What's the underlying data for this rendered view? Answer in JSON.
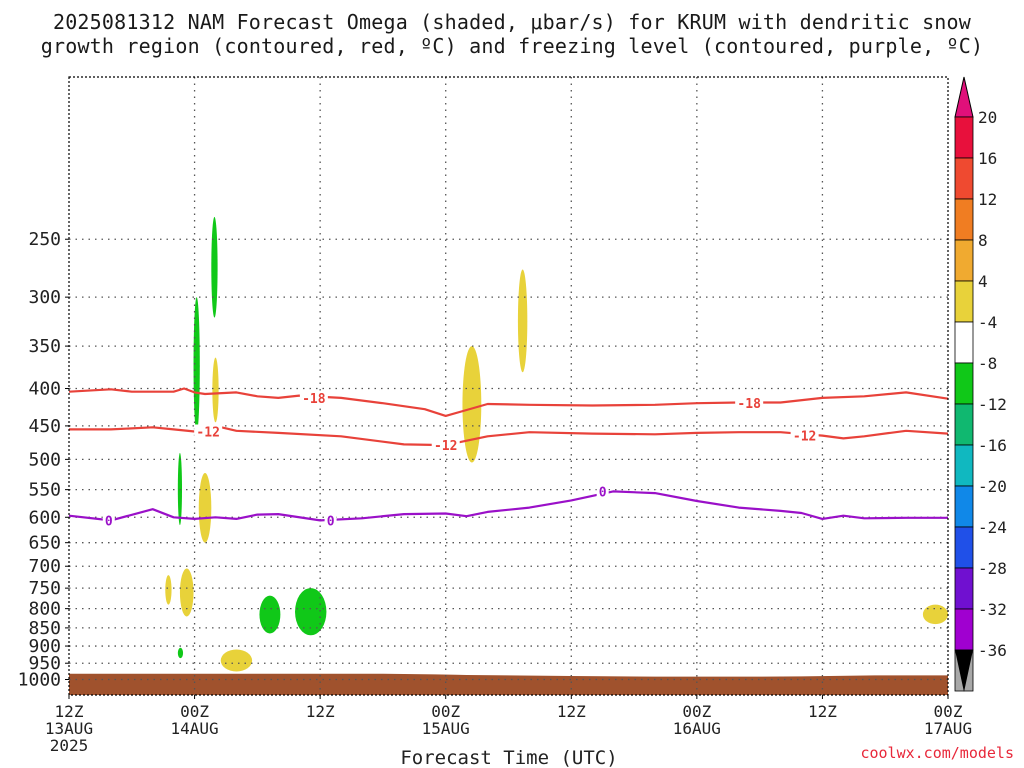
{
  "title_line1": "2025081312 NAM Forecast Omega (shaded, μbar/s) for KRUM with dendritic snow",
  "title_line2": "growth region (contoured, red, ºC) and freezing level (contoured, purple, ºC)",
  "credit": "coolwx.com/models",
  "chart_data": {
    "type": "heatmap",
    "title": "2025081312 NAM Forecast Omega (shaded, μbar/s) for KRUM with dendritic snow growth region (contoured, red, ºC) and freezing level (contoured, purple, ºC)",
    "xlabel": "Forecast Time (UTC)",
    "ylabel": "",
    "x_range_hours": [
      0,
      84
    ],
    "y_axis": "pressure (hPa), inverted",
    "y_ticks": [
      250,
      300,
      350,
      400,
      450,
      500,
      550,
      600,
      650,
      700,
      750,
      800,
      850,
      900,
      950,
      1000
    ],
    "x_ticks": [
      {
        "hour": 0,
        "lines": [
          "12Z",
          "13AUG",
          "2025"
        ]
      },
      {
        "hour": 12,
        "lines": [
          "00Z",
          "14AUG"
        ]
      },
      {
        "hour": 24,
        "lines": [
          "12Z"
        ]
      },
      {
        "hour": 36,
        "lines": [
          "00Z",
          "15AUG"
        ]
      },
      {
        "hour": 48,
        "lines": [
          "12Z"
        ]
      },
      {
        "hour": 60,
        "lines": [
          "00Z",
          "16AUG"
        ]
      },
      {
        "hour": 72,
        "lines": [
          "12Z"
        ]
      },
      {
        "hour": 84,
        "lines": [
          "00Z",
          "17AUG"
        ]
      }
    ],
    "grid": true,
    "colorbar": {
      "labels": [
        "20",
        "16",
        "12",
        "8",
        "4",
        "-4",
        "-8",
        "-12",
        "-16",
        "-20",
        "-24",
        "-28",
        "-32",
        "-36"
      ],
      "colors": [
        "#e8103c",
        "#ef4a30",
        "#f07d22",
        "#f0aa30",
        "#e8d23a",
        "#ffffff",
        "#10c818",
        "#10b870",
        "#10b8c0",
        "#1088e8",
        "#2050e8",
        "#7010d0",
        "#a000d0",
        "#a8a8a8"
      ],
      "top_arrow_color": "#e0107a",
      "bottom_arrow_color": "#000000"
    },
    "contours": [
      {
        "label": "-18",
        "color": "#e8423a",
        "points": [
          [
            0,
            404
          ],
          [
            4,
            401
          ],
          [
            6,
            404
          ],
          [
            10,
            404
          ],
          [
            11,
            400
          ],
          [
            12,
            405
          ],
          [
            13,
            407
          ],
          [
            16,
            405
          ],
          [
            18,
            410
          ],
          [
            20,
            412
          ],
          [
            22,
            409
          ],
          [
            26,
            412
          ],
          [
            30,
            419
          ],
          [
            34,
            427
          ],
          [
            36,
            436
          ],
          [
            38,
            428
          ],
          [
            40,
            420
          ],
          [
            44,
            421
          ],
          [
            50,
            422
          ],
          [
            56,
            421
          ],
          [
            60,
            419
          ],
          [
            64,
            418
          ],
          [
            68,
            418
          ],
          [
            72,
            412
          ],
          [
            76,
            410
          ],
          [
            80,
            405
          ],
          [
            84,
            413
          ]
        ],
        "label_positions": [
          [
            23.4,
            412
          ],
          [
            65,
            419
          ]
        ]
      },
      {
        "label": "-12",
        "color": "#e8423a",
        "points": [
          [
            0,
            455
          ],
          [
            4,
            455
          ],
          [
            8,
            452
          ],
          [
            10,
            455
          ],
          [
            12,
            458
          ],
          [
            14,
            450
          ],
          [
            16,
            457
          ],
          [
            20,
            460
          ],
          [
            26,
            465
          ],
          [
            32,
            477
          ],
          [
            36,
            478
          ],
          [
            40,
            465
          ],
          [
            44,
            459
          ],
          [
            50,
            461
          ],
          [
            56,
            462
          ],
          [
            60,
            460
          ],
          [
            64,
            459
          ],
          [
            68,
            459
          ],
          [
            72,
            464
          ],
          [
            74,
            468
          ],
          [
            76,
            465
          ],
          [
            80,
            457
          ],
          [
            84,
            461
          ]
        ],
        "label_positions": [
          [
            13.3,
            458
          ],
          [
            36,
            478
          ],
          [
            70.3,
            464
          ]
        ]
      },
      {
        "label": "0",
        "color": "#9a10c8",
        "points": [
          [
            0,
            597
          ],
          [
            4,
            606
          ],
          [
            8,
            585
          ],
          [
            10,
            600
          ],
          [
            12,
            603
          ],
          [
            14,
            600
          ],
          [
            16,
            603
          ],
          [
            18,
            595
          ],
          [
            20,
            594
          ],
          [
            24,
            606
          ],
          [
            28,
            602
          ],
          [
            32,
            594
          ],
          [
            36,
            593
          ],
          [
            38,
            598
          ],
          [
            40,
            590
          ],
          [
            44,
            582
          ],
          [
            48,
            569
          ],
          [
            52,
            553
          ],
          [
            56,
            556
          ],
          [
            60,
            570
          ],
          [
            64,
            582
          ],
          [
            68,
            588
          ],
          [
            70,
            592
          ],
          [
            72,
            603
          ],
          [
            74,
            597
          ],
          [
            76,
            602
          ],
          [
            80,
            601
          ],
          [
            84,
            601
          ]
        ],
        "label_positions": [
          [
            3.8,
            606
          ],
          [
            25,
            606
          ],
          [
            51,
            553
          ]
        ]
      }
    ],
    "shaded_regions": [
      {
        "value_bin": "-8 to -4",
        "color": "#10c818",
        "hours": [
          11.9,
          12.5
        ],
        "p_range": [
          300,
          460
        ]
      },
      {
        "value_bin": "-8 to -4",
        "color": "#10c818",
        "hours": [
          13.6,
          14.2
        ],
        "p_range": [
          233,
          320
        ]
      },
      {
        "value_bin": "-8 to -4",
        "color": "#10c818",
        "hours": [
          10.4,
          10.8
        ],
        "p_range": [
          490,
          615
        ]
      },
      {
        "value_bin": "-8 to -4",
        "color": "#10c818",
        "hours": [
          10.4,
          10.9
        ],
        "p_range": [
          905,
          935
        ]
      },
      {
        "value_bin": "-8 to -4",
        "color": "#10c818",
        "hours": [
          18.2,
          20.2
        ],
        "p_range": [
          768,
          865
        ]
      },
      {
        "value_bin": "-8 to -4",
        "color": "#10c818",
        "hours": [
          21.6,
          24.6
        ],
        "p_range": [
          750,
          870
        ]
      },
      {
        "value_bin": "4 to 8",
        "color": "#e8d23a",
        "hours": [
          13.7,
          14.3
        ],
        "p_range": [
          363,
          445
        ]
      },
      {
        "value_bin": "4 to 8",
        "color": "#e8d23a",
        "hours": [
          12.4,
          13.6
        ],
        "p_range": [
          522,
          650
        ]
      },
      {
        "value_bin": "4 to 8",
        "color": "#e8d23a",
        "hours": [
          9.2,
          9.8
        ],
        "p_range": [
          720,
          790
        ]
      },
      {
        "value_bin": "4 to 8",
        "color": "#e8d23a",
        "hours": [
          10.6,
          11.9
        ],
        "p_range": [
          705,
          820
        ]
      },
      {
        "value_bin": "4 to 8",
        "color": "#e8d23a",
        "hours": [
          14.5,
          17.5
        ],
        "p_range": [
          910,
          975
        ]
      },
      {
        "value_bin": "4 to 8",
        "color": "#e8d23a",
        "hours": [
          37.6,
          39.4
        ],
        "p_range": [
          350,
          505
        ]
      },
      {
        "value_bin": "4 to 8",
        "color": "#e8d23a",
        "hours": [
          42.9,
          43.8
        ],
        "p_range": [
          275,
          380
        ]
      },
      {
        "value_bin": "4 to 8",
        "color": "#e8d23a",
        "hours": [
          81.6,
          84
        ],
        "p_range": [
          790,
          840
        ]
      }
    ],
    "terrain": {
      "color": "#a0522d",
      "top_pressure": [
        [
          0,
          982
        ],
        [
          10,
          982
        ],
        [
          20,
          982
        ],
        [
          30,
          982
        ],
        [
          35,
          984
        ],
        [
          37,
          985
        ],
        [
          38,
          986
        ],
        [
          48,
          989
        ],
        [
          56,
          991
        ],
        [
          66,
          991
        ],
        [
          70,
          990
        ],
        [
          77,
          987
        ],
        [
          84,
          987
        ]
      ]
    }
  }
}
